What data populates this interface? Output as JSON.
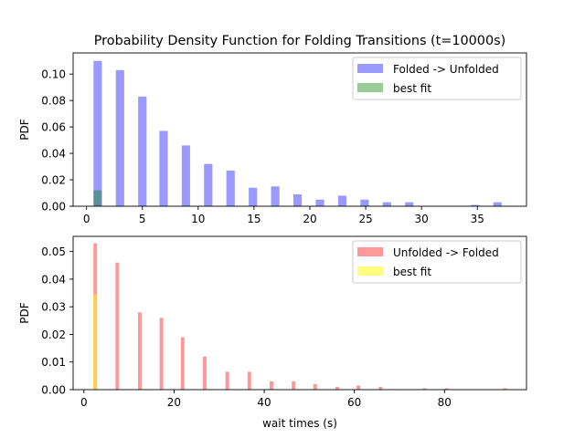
{
  "chart_data": [
    {
      "type": "bar",
      "title": "Probability Density Function for Folding Transitions (t=10000s)",
      "xlabel": "",
      "ylabel": "PDF",
      "xlim": [
        -1.2,
        39.4
      ],
      "ylim": [
        0,
        0.116
      ],
      "xticks": [
        0,
        5,
        10,
        15,
        20,
        25,
        30,
        35
      ],
      "yticks": [
        0.0,
        0.02,
        0.04,
        0.06,
        0.08,
        0.1
      ],
      "legend_position": "top-right",
      "bar_width": 0.75,
      "series": [
        {
          "name": "Folded -> Unfolded",
          "color": "#0000ff",
          "opacity": 0.4,
          "x": [
            1.0,
            3.0,
            5.0,
            6.9,
            8.9,
            10.9,
            12.9,
            14.9,
            16.9,
            18.9,
            20.9,
            22.9,
            24.9,
            26.9,
            28.9,
            30.8,
            32.8,
            34.8,
            36.8
          ],
          "values": [
            0.11,
            0.103,
            0.083,
            0.057,
            0.046,
            0.032,
            0.027,
            0.014,
            0.015,
            0.009,
            0.005,
            0.008,
            0.005,
            0.003,
            0.003,
            0.0,
            0.0,
            0.001,
            0.003
          ]
        },
        {
          "name": "best fit",
          "color": "#008000",
          "opacity": 0.4,
          "x": [
            1.0
          ],
          "values": [
            0.012
          ]
        }
      ]
    },
    {
      "type": "bar",
      "title": "",
      "xlabel": "wait times (s)",
      "ylabel": "PDF",
      "xlim": [
        -2.4,
        98.2
      ],
      "ylim": [
        0,
        0.0555
      ],
      "xticks": [
        0,
        20,
        40,
        60,
        80
      ],
      "yticks": [
        0.0,
        0.01,
        0.02,
        0.03,
        0.04,
        0.05
      ],
      "legend_position": "top-right",
      "bar_width": 0.8,
      "series": [
        {
          "name": "Unfolded -> Folded",
          "color": "#ff0000",
          "opacity": 0.4,
          "x": [
            2.5,
            7.4,
            12.4,
            17.2,
            21.9,
            26.8,
            31.8,
            36.7,
            41.6,
            46.5,
            51.3,
            56.2,
            60.9,
            65.8,
            70.7,
            75.6,
            80.5,
            85.4,
            90.3,
            93.4
          ],
          "values": [
            0.053,
            0.046,
            0.028,
            0.026,
            0.019,
            0.012,
            0.0065,
            0.0065,
            0.003,
            0.003,
            0.002,
            0.001,
            0.0015,
            0.001,
            0.0,
            0.0005,
            0.0005,
            0.0,
            0.0,
            0.0005
          ]
        },
        {
          "name": "best fit",
          "color": "#ffff00",
          "opacity": 0.5,
          "x": [
            2.5
          ],
          "values": [
            0.0345
          ]
        }
      ]
    }
  ]
}
